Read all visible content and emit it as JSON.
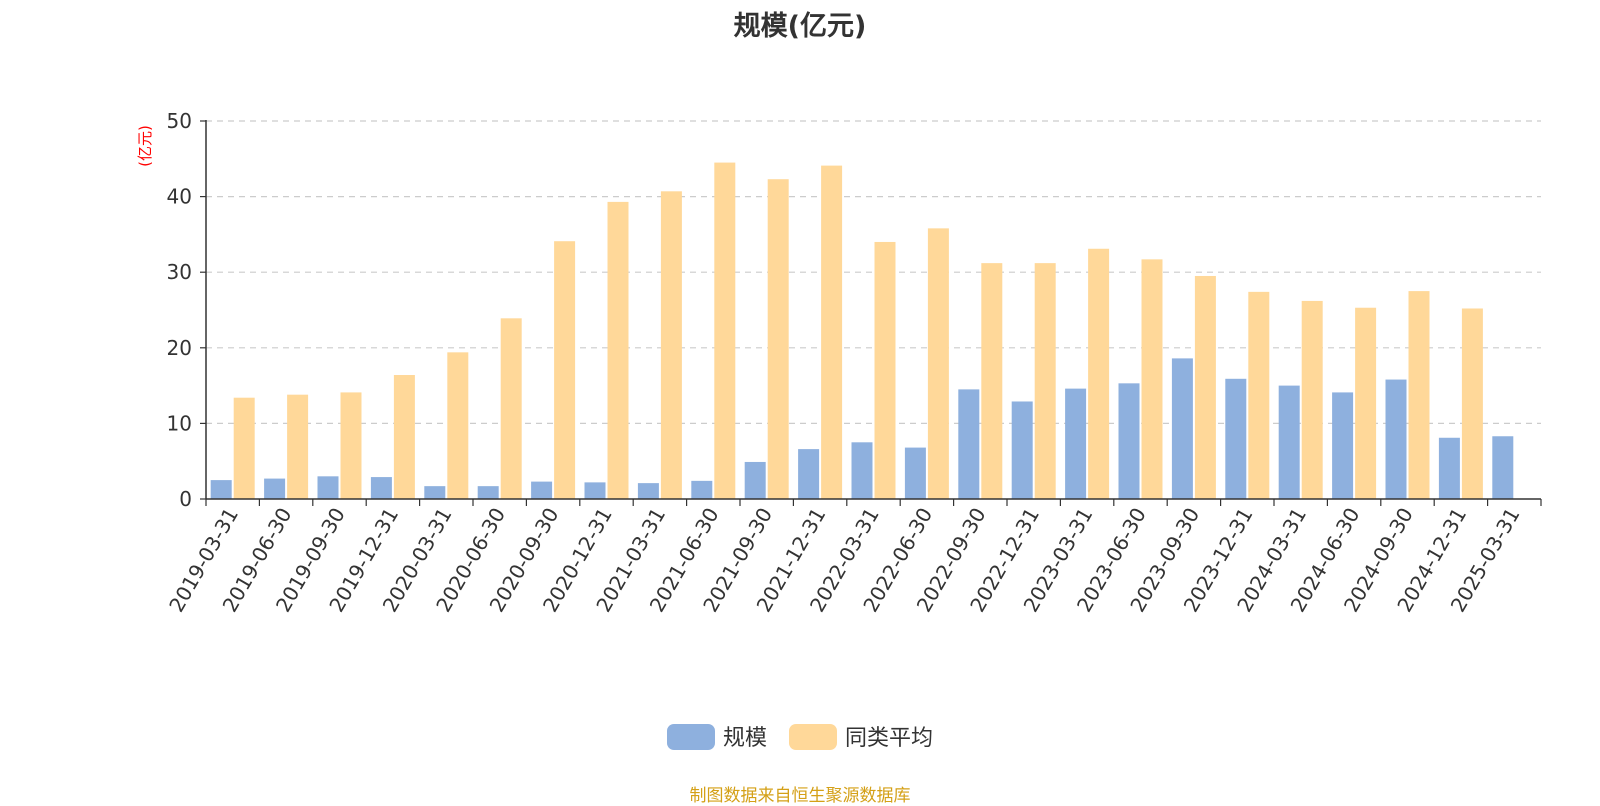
{
  "colors": {
    "scale": "#8eb0de",
    "peer_avg": "#ffd899",
    "axis": "#333333",
    "grid": "#cccccc",
    "unit_label": "#ff0000",
    "source_note": "#d4a017"
  },
  "source_note": "制图数据来自恒生聚源数据库",
  "chart_data": {
    "type": "bar",
    "title": "规模(亿元)",
    "ylabel": "(亿元)",
    "xlabel": "",
    "ylim": [
      0,
      50
    ],
    "yticks": [
      0,
      10,
      20,
      30,
      40,
      50
    ],
    "grid": true,
    "legend_position": "bottom-center",
    "categories": [
      "2019-03-31",
      "2019-06-30",
      "2019-09-30",
      "2019-12-31",
      "2020-03-31",
      "2020-06-30",
      "2020-09-30",
      "2020-12-31",
      "2021-03-31",
      "2021-06-30",
      "2021-09-30",
      "2021-12-31",
      "2022-03-31",
      "2022-06-30",
      "2022-09-30",
      "2022-12-31",
      "2023-03-31",
      "2023-06-30",
      "2023-09-30",
      "2023-12-31",
      "2024-03-31",
      "2024-06-30",
      "2024-09-30",
      "2024-12-31",
      "2025-03-31"
    ],
    "series": [
      {
        "name": "规模",
        "color": "#8eb0de",
        "values": [
          2.5,
          2.7,
          3.0,
          2.9,
          1.7,
          1.7,
          2.3,
          2.2,
          2.1,
          2.4,
          4.9,
          6.6,
          7.5,
          6.8,
          14.5,
          12.9,
          14.6,
          15.3,
          18.6,
          15.9,
          15.0,
          14.1,
          15.8,
          8.1,
          8.3
        ]
      },
      {
        "name": "同类平均",
        "color": "#ffd899",
        "values": [
          13.4,
          13.8,
          14.1,
          16.4,
          19.4,
          23.9,
          34.1,
          39.3,
          40.7,
          44.5,
          42.3,
          44.1,
          34.0,
          35.8,
          31.2,
          31.2,
          33.1,
          31.7,
          29.5,
          27.4,
          26.2,
          25.3,
          27.5,
          25.2,
          null
        ]
      }
    ]
  }
}
